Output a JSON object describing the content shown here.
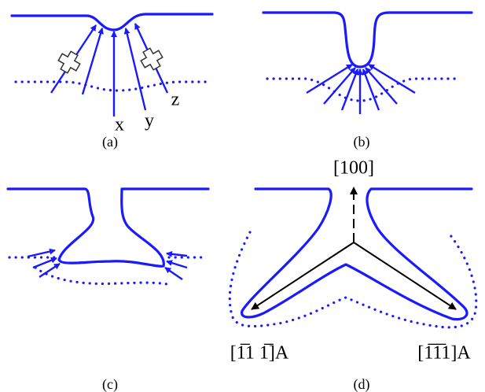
{
  "panels": [
    {
      "label": "(a)",
      "arrow_labels": [
        "x",
        "y",
        "z"
      ]
    },
    {
      "label": "(b)"
    },
    {
      "label": "(c)"
    },
    {
      "label": "(d)",
      "directions": [
        "[100]",
        "[1̅1 1̅]A",
        "[1̅1̅1]A"
      ]
    }
  ]
}
